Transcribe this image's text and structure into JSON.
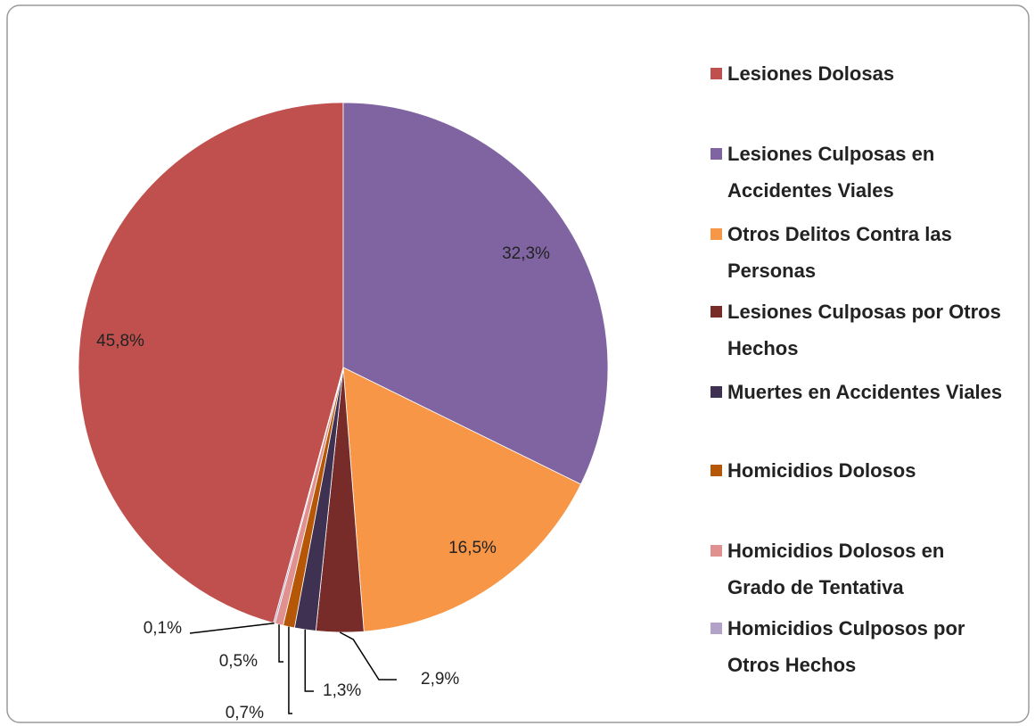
{
  "chart_data": {
    "type": "pie",
    "categories": [
      "Lesiones Dolosas",
      "Lesiones Culposas en Accidentes Viales",
      "Otros Delitos Contra las Personas",
      "Lesiones Culposas por Otros Hechos",
      "Muertes en Accidentes Viales",
      "Homicidios Dolosos",
      "Homicidios Dolosos en Grado de Tentativa",
      "Homicidios Culposos por Otros Hechos"
    ],
    "values": [
      45.8,
      32.3,
      16.5,
      2.9,
      1.3,
      0.7,
      0.5,
      0.1
    ],
    "value_labels": [
      "45,8%",
      "32,3%",
      "16,5%",
      "2,9%",
      "1,3%",
      "0,7%",
      "0,5%",
      "0,1%"
    ],
    "colors": [
      "#c0504d",
      "#8064a2",
      "#f79646",
      "#772c2a",
      "#3f3151",
      "#b65708",
      "#e0908e",
      "#b3a2c7"
    ],
    "legend": "right"
  }
}
